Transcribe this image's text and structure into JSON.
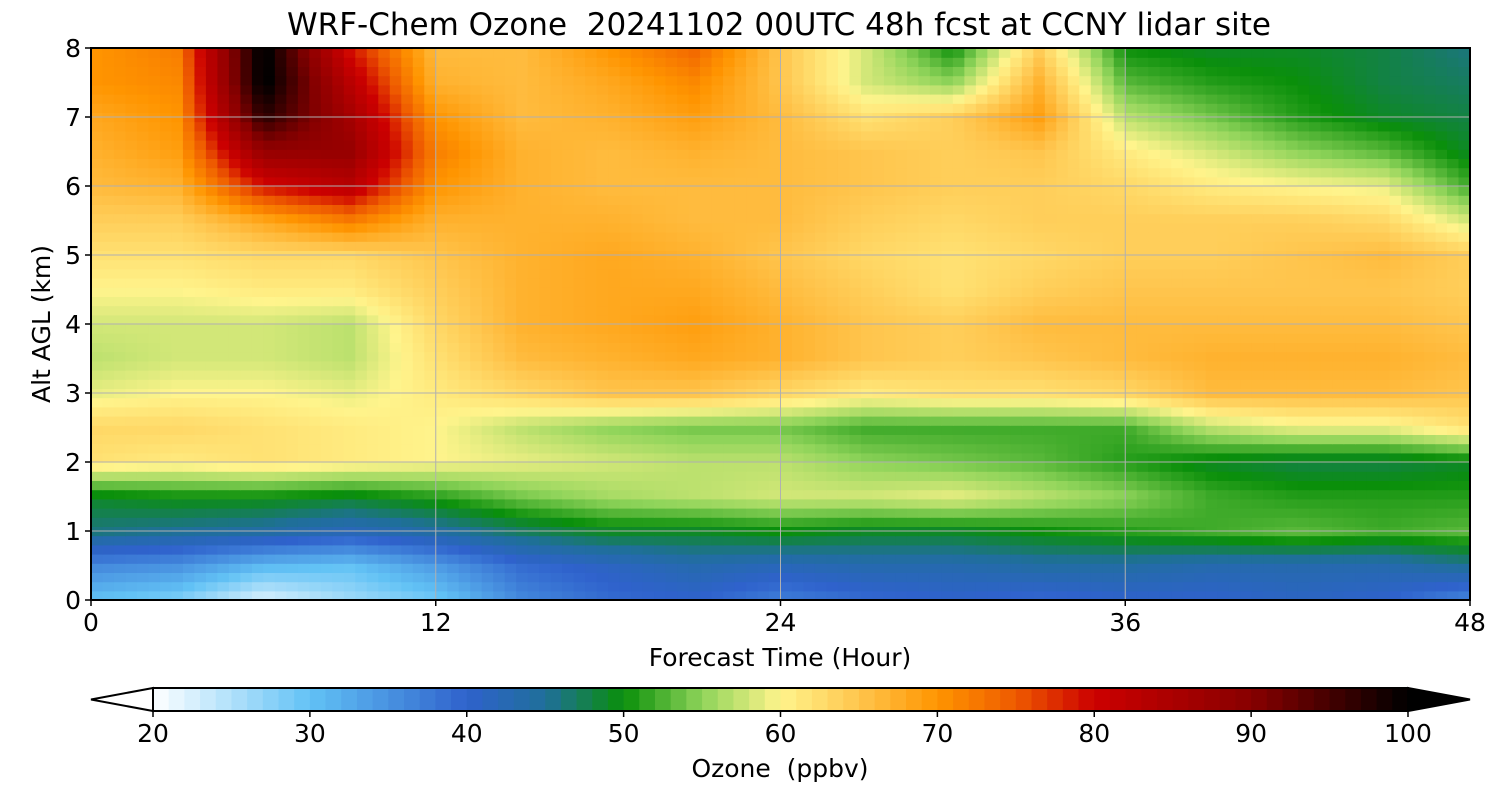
{
  "chart_data": {
    "type": "heatmap",
    "title": "WRF-Chem Ozone  20241102 00UTC 48h fcst at CCNY lidar site",
    "xlabel": "Forecast Time (Hour)",
    "ylabel": "Alt AGL (km)",
    "xlim": [
      0,
      48
    ],
    "ylim": [
      0,
      8
    ],
    "x_ticks": [
      0,
      12,
      24,
      36,
      48
    ],
    "y_ticks": [
      0,
      1,
      2,
      3,
      4,
      5,
      6,
      7,
      8
    ],
    "grid": true,
    "x": [
      0,
      3,
      6,
      9,
      12,
      15,
      18,
      21,
      24,
      27,
      30,
      33,
      36,
      39,
      42,
      45,
      48
    ],
    "y": [
      0,
      0.5,
      1,
      1.5,
      2,
      2.5,
      3,
      3.5,
      4,
      4.5,
      5,
      5.5,
      6,
      6.5,
      7,
      7.5,
      8
    ],
    "values": [
      [
        30,
        28,
        22,
        26,
        29,
        36,
        39,
        40,
        37,
        39,
        40,
        39,
        40,
        40,
        41,
        40,
        36
      ],
      [
        36,
        35,
        31,
        30,
        34,
        39,
        41,
        43,
        42,
        43,
        43,
        44,
        44,
        43,
        43,
        43,
        45
      ],
      [
        46,
        45,
        44,
        42,
        44,
        47,
        49,
        49,
        50,
        49,
        49,
        50,
        51,
        52,
        53,
        52,
        53
      ],
      [
        49,
        50,
        50,
        49,
        51,
        54,
        56,
        57,
        58,
        58,
        59,
        57,
        55,
        52,
        51,
        51,
        51
      ],
      [
        62,
        61,
        62,
        61,
        60,
        59,
        58,
        57,
        57,
        55,
        54,
        53,
        51,
        49,
        48,
        48,
        49
      ],
      [
        63,
        63,
        62,
        61,
        60,
        57,
        55,
        54,
        54,
        52,
        52,
        52,
        52,
        57,
        59,
        59,
        62
      ],
      [
        59,
        60,
        60,
        59,
        61,
        63,
        65,
        65,
        63,
        61,
        62,
        62,
        63,
        66,
        66,
        66,
        65
      ],
      [
        57,
        58,
        58,
        57,
        62,
        66,
        67,
        68,
        67,
        65,
        64,
        65,
        66,
        67,
        67,
        67,
        66
      ],
      [
        58,
        58,
        58,
        57,
        63,
        67,
        68,
        69,
        67,
        65,
        64,
        66,
        66,
        66,
        66,
        66,
        65
      ],
      [
        60,
        60,
        61,
        61,
        64,
        67,
        68,
        68,
        66,
        64,
        62,
        64,
        65,
        65,
        65,
        65,
        64
      ],
      [
        62,
        62,
        63,
        63,
        65,
        67,
        68,
        67,
        65,
        63,
        62,
        63,
        64,
        64,
        65,
        66,
        64
      ],
      [
        64,
        64,
        68,
        72,
        67,
        67,
        67,
        66,
        66,
        64,
        63,
        64,
        64,
        64,
        64,
        63,
        58
      ],
      [
        66,
        67,
        79,
        83,
        70,
        67,
        66,
        66,
        66,
        65,
        64,
        64,
        63,
        61,
        60,
        59,
        52
      ],
      [
        67,
        69,
        88,
        88,
        72,
        67,
        66,
        67,
        66,
        65,
        64,
        65,
        61,
        58,
        55,
        53,
        49
      ],
      [
        68,
        70,
        97,
        86,
        70,
        66,
        67,
        69,
        66,
        62,
        64,
        69,
        57,
        54,
        51,
        49,
        48
      ],
      [
        70,
        71,
        101,
        83,
        67,
        66,
        68,
        71,
        65,
        58,
        55,
        67,
        53,
        51,
        50,
        48,
        47
      ],
      [
        70,
        72,
        101,
        79,
        66,
        66,
        70,
        74,
        65,
        58,
        50,
        64,
        50,
        49,
        49,
        48,
        46
      ]
    ],
    "colorbar": {
      "label": "Ozone  (ppbv)",
      "min": 20,
      "max": 100,
      "ticks": [
        20,
        30,
        40,
        50,
        60,
        70,
        80,
        90,
        100
      ],
      "extend": "both",
      "colors": [
        {
          "v": 20,
          "c": "#ffffff"
        },
        {
          "v": 30,
          "c": "#62c2f5"
        },
        {
          "v": 40,
          "c": "#2f62cc"
        },
        {
          "v": 45,
          "c": "#1f6f9a"
        },
        {
          "v": 50,
          "c": "#0a8f0a"
        },
        {
          "v": 55,
          "c": "#8fd45a"
        },
        {
          "v": 60,
          "c": "#fff48c"
        },
        {
          "v": 65,
          "c": "#ffc54d"
        },
        {
          "v": 70,
          "c": "#ff9500"
        },
        {
          "v": 75,
          "c": "#ee5a00"
        },
        {
          "v": 80,
          "c": "#cc0000"
        },
        {
          "v": 90,
          "c": "#880000"
        },
        {
          "v": 100,
          "c": "#000000"
        }
      ]
    }
  }
}
